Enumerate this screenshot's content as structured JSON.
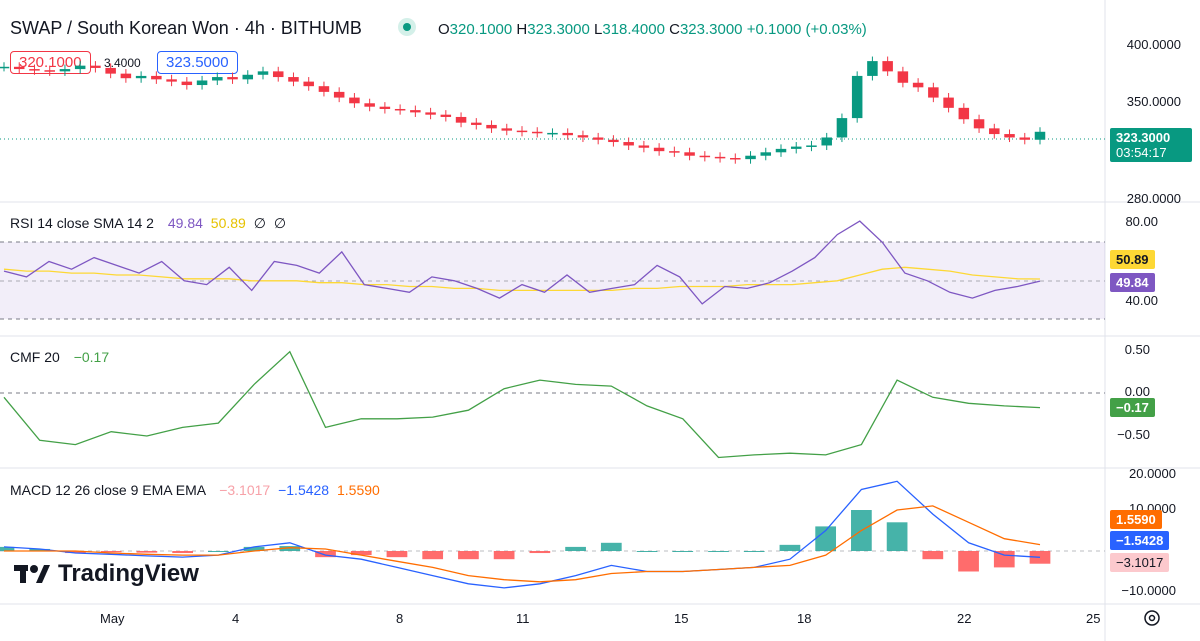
{
  "header": {
    "symbol": "SWAP / South Korean Won",
    "interval": "4h",
    "exchange": "BITHUMB",
    "open_label": "O",
    "open": "320.1000",
    "high_label": "H",
    "high": "323.3000",
    "low_label": "L",
    "low": "318.4000",
    "close_label": "C",
    "close": "323.3000",
    "change": "+0.1000 (+0.03%)",
    "sell_price": "320.1000",
    "spread": "3.4000",
    "buy_price": "323.5000"
  },
  "price_axis": {
    "ticks": [
      "400.0000",
      "350.0000",
      "280.0000"
    ],
    "last_price": "323.3000",
    "countdown": "03:54:17"
  },
  "rsi": {
    "title": "RSI 14 close SMA 14 2",
    "value": "49.84",
    "sma": "50.89",
    "extra1": "∅",
    "extra2": "∅",
    "ticks": [
      "80.00",
      "40.00"
    ]
  },
  "cmf": {
    "title": "CMF 20",
    "value": "−0.17",
    "ticks": [
      "0.50",
      "0.00",
      "−0.50"
    ]
  },
  "macd": {
    "title": "MACD 12 26 close 9 EMA EMA",
    "hist": "−3.1017",
    "macd": "−1.5428",
    "signal": "1.5590",
    "ticks": [
      "20.0000",
      "10.0000",
      "−10.0000"
    ]
  },
  "x_axis": [
    "May",
    "4",
    "8",
    "11",
    "15",
    "18",
    "22",
    "25"
  ],
  "brand": "TradingView",
  "colors": {
    "up": "#089981",
    "down": "#f23645",
    "rsi": "#7e57c2",
    "rsi_sma": "#fdd835",
    "cmf": "#43a047",
    "macd": "#2962ff",
    "signal": "#ff6d00"
  },
  "chart_data": [
    {
      "type": "line",
      "title": "SWAP / South Korean Won · 4h · BITHUMB",
      "y_ticks": [
        280,
        350,
        400
      ],
      "x_ticks": [
        "May",
        "4",
        "8",
        "11",
        "15",
        "18",
        "22",
        "25"
      ],
      "series": [
        {
          "values": [
            380,
            378,
            377,
            376,
            378,
            381,
            379,
            374,
            370,
            372,
            369,
            367,
            364,
            368,
            371,
            369,
            373,
            376,
            371,
            367,
            363,
            358,
            353,
            348,
            345,
            343,
            342,
            340,
            338,
            336,
            331,
            329,
            326,
            324,
            323,
            322,
            322,
            320,
            318,
            316,
            314,
            311,
            309,
            306,
            305,
            302,
            301,
            300,
            299,
            302,
            305,
            308,
            310,
            311,
            318,
            335,
            372,
            385,
            376,
            366,
            362,
            353,
            344,
            334,
            326,
            321,
            318,
            316,
            323
          ]
        }
      ]
    },
    {
      "type": "line",
      "title": "RSI 14 close SMA 14 2",
      "y_ticks": [
        40,
        80
      ],
      "series": [
        {
          "name": "RSI",
          "values": [
            55,
            52,
            60,
            56,
            62,
            58,
            54,
            60,
            50,
            48,
            57,
            45,
            60,
            58,
            54,
            65,
            48,
            46,
            44,
            52,
            50,
            46,
            41,
            48,
            44,
            53,
            44,
            46,
            48,
            58,
            52,
            38,
            47,
            46,
            49,
            55,
            62,
            74,
            81,
            70,
            54,
            50,
            44,
            41,
            45,
            47,
            49.84
          ]
        },
        {
          "name": "SMA",
          "values": [
            56,
            55,
            55,
            54,
            54,
            53,
            53,
            52,
            51,
            51,
            51,
            50,
            50,
            50,
            49,
            49,
            48,
            48,
            47,
            47,
            46,
            46,
            45,
            45,
            45,
            45,
            45,
            45,
            46,
            46,
            47,
            47,
            47,
            48,
            48,
            48,
            49,
            50,
            53,
            56,
            57,
            56,
            55,
            53,
            52,
            51,
            50.89
          ]
        }
      ]
    },
    {
      "type": "line",
      "title": "CMF 20",
      "y_ticks": [
        -0.5,
        0,
        0.5
      ],
      "series": [
        {
          "name": "CMF",
          "values": [
            -0.05,
            -0.55,
            -0.6,
            -0.45,
            -0.5,
            -0.4,
            -0.35,
            0.1,
            0.48,
            -0.4,
            -0.3,
            -0.3,
            -0.28,
            -0.2,
            0.05,
            0.15,
            0.1,
            0.08,
            -0.15,
            -0.3,
            -0.75,
            -0.72,
            -0.7,
            -0.72,
            -0.6,
            0.15,
            -0.05,
            -0.12,
            -0.15,
            -0.17
          ]
        }
      ]
    },
    {
      "type": "bar",
      "title": "MACD 12 26 close 9 EMA EMA",
      "y_ticks": [
        -10,
        10,
        20
      ],
      "series": [
        {
          "name": "MACD",
          "values": [
            1.0,
            0.5,
            -0.5,
            -0.8,
            -1.2,
            -1.5,
            -1.0,
            1.0,
            2.0,
            -1.0,
            -2.0,
            -4.0,
            -6.0,
            -8.0,
            -9.0,
            -8.0,
            -6.0,
            -3.5,
            -5.0,
            -5.0,
            -4.5,
            -4.0,
            -2.0,
            5.0,
            15.0,
            17.0,
            9.0,
            2.0,
            -1.0,
            -1.5428
          ]
        },
        {
          "name": "Signal",
          "values": [
            0.0,
            0.0,
            0.0,
            -0.5,
            -0.8,
            -1.0,
            -1.0,
            0.0,
            0.8,
            0.5,
            -1.0,
            -2.5,
            -4.0,
            -6.0,
            -7.0,
            -7.5,
            -7.0,
            -5.5,
            -5.0,
            -5.0,
            -4.5,
            -4.0,
            -3.5,
            -1.0,
            5.0,
            10.0,
            11.0,
            7.0,
            3.0,
            1.559
          ]
        },
        {
          "name": "Histogram",
          "values": [
            1.0,
            0.5,
            -0.5,
            -0.3,
            -0.4,
            -0.5,
            0.0,
            1.0,
            1.2,
            -1.5,
            -1.0,
            -1.5,
            -2.0,
            -2.0,
            -2.0,
            -0.5,
            1.0,
            2.0,
            0.0,
            0.0,
            0.0,
            0.0,
            1.5,
            6.0,
            10.0,
            7.0,
            -2.0,
            -5.0,
            -4.0,
            -3.1017
          ]
        }
      ]
    }
  ]
}
